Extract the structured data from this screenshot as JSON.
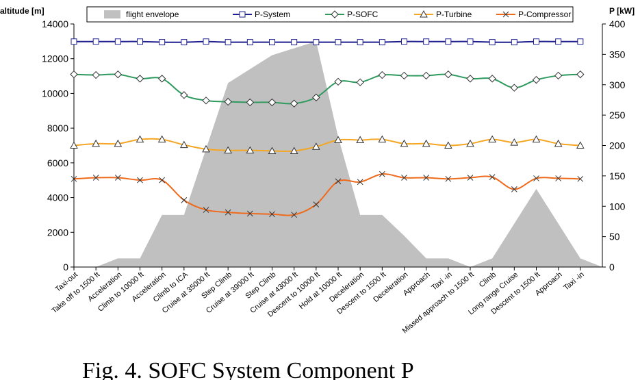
{
  "chart_data": {
    "type": "line",
    "caption": "Fig. 4. SOFC System Component P",
    "ylabel": "altitude [m]",
    "y2label": "P [kW]",
    "categories": [
      "Taxi-out",
      "Take off to 1500 ft",
      "Acceleration",
      "Climb to 10000 ft",
      "Acceleration",
      "Climb to ICA",
      "Cruise at 35000 ft",
      "Step Climb",
      "Cruise at 39000 ft",
      "Step Climb",
      "Cruise at 43000 ft",
      "Descent to 10000 ft",
      "Hold at 10000 ft",
      "Deceleration",
      "Descent to 1500 ft",
      "Deceleration",
      "Approach",
      "Taxi -in",
      "Missed approach to 1500 ft",
      "Climb",
      "Long range Cruise",
      "Descent to 1500 ft",
      "Approach",
      "Taxi -in"
    ],
    "ylim": [
      0,
      14000
    ],
    "yticks": [
      0,
      2000,
      4000,
      6000,
      8000,
      10000,
      12000,
      14000
    ],
    "y2lim": [
      0,
      400
    ],
    "y2ticks": [
      0,
      50,
      100,
      150,
      200,
      250,
      300,
      350,
      400
    ],
    "series": [
      {
        "name": "flight envelope",
        "kind": "area",
        "color": "#c0c0c0",
        "values": [
          0,
          0,
          500,
          500,
          3000,
          3000,
          6800,
          10600,
          11400,
          12200,
          12600,
          13000,
          7500,
          3000,
          3000,
          1800,
          500,
          500,
          0,
          500,
          2500,
          4500,
          2500,
          500
        ]
      },
      {
        "name": "P-System",
        "marker": "square",
        "color": "#1f1f8f",
        "axis": "y2",
        "values": [
          371,
          371,
          371,
          371,
          370,
          370,
          371,
          370,
          370,
          370,
          370,
          370,
          370,
          370,
          370,
          371,
          371,
          371,
          371,
          370,
          370,
          371,
          371,
          371
        ]
      },
      {
        "name": "P-SOFC",
        "marker": "diamond",
        "color": "#2e9a5e",
        "axis": "y2",
        "values": [
          317,
          316,
          317,
          310,
          310,
          283,
          274,
          272,
          271,
          271,
          269,
          279,
          305,
          304,
          316,
          315,
          315,
          317,
          310,
          310,
          295,
          308,
          315,
          317
        ]
      },
      {
        "name": "P-Turbine",
        "marker": "triangle",
        "color": "#f5a623",
        "axis": "y2",
        "values": [
          200,
          203,
          203,
          210,
          210,
          201,
          194,
          192,
          192,
          191,
          191,
          198,
          209,
          209,
          210,
          203,
          203,
          200,
          203,
          210,
          205,
          210,
          203,
          200
        ]
      },
      {
        "name": "P-Compressor",
        "marker": "x",
        "color": "#f06a1c",
        "axis": "y2",
        "values": [
          145,
          147,
          147,
          143,
          143,
          110,
          94,
          90,
          88,
          87,
          86,
          103,
          141,
          140,
          153,
          147,
          147,
          145,
          147,
          148,
          128,
          146,
          146,
          145
        ]
      }
    ]
  }
}
